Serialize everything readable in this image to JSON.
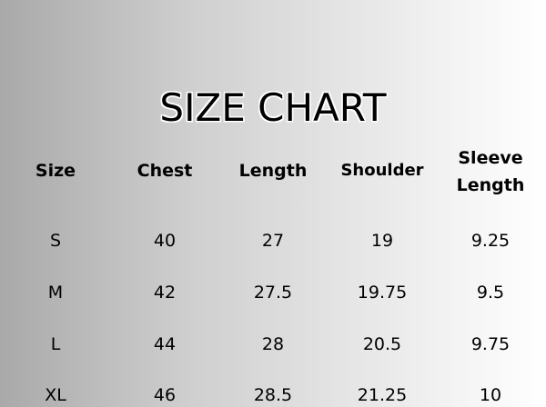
{
  "title": "SIZE CHART",
  "headers": [
    "Size",
    "Chest",
    "Length",
    "Shoulder",
    "Sleeve Length"
  ],
  "rows": [
    [
      "S",
      "40",
      "27",
      "19",
      "9.25"
    ],
    [
      "M",
      "42",
      "27.5",
      "19.75",
      "9.5"
    ],
    [
      "L",
      "44",
      "28",
      "20.5",
      "9.75"
    ],
    [
      "XL",
      "46",
      "28.5",
      "21.25",
      "10"
    ]
  ]
}
